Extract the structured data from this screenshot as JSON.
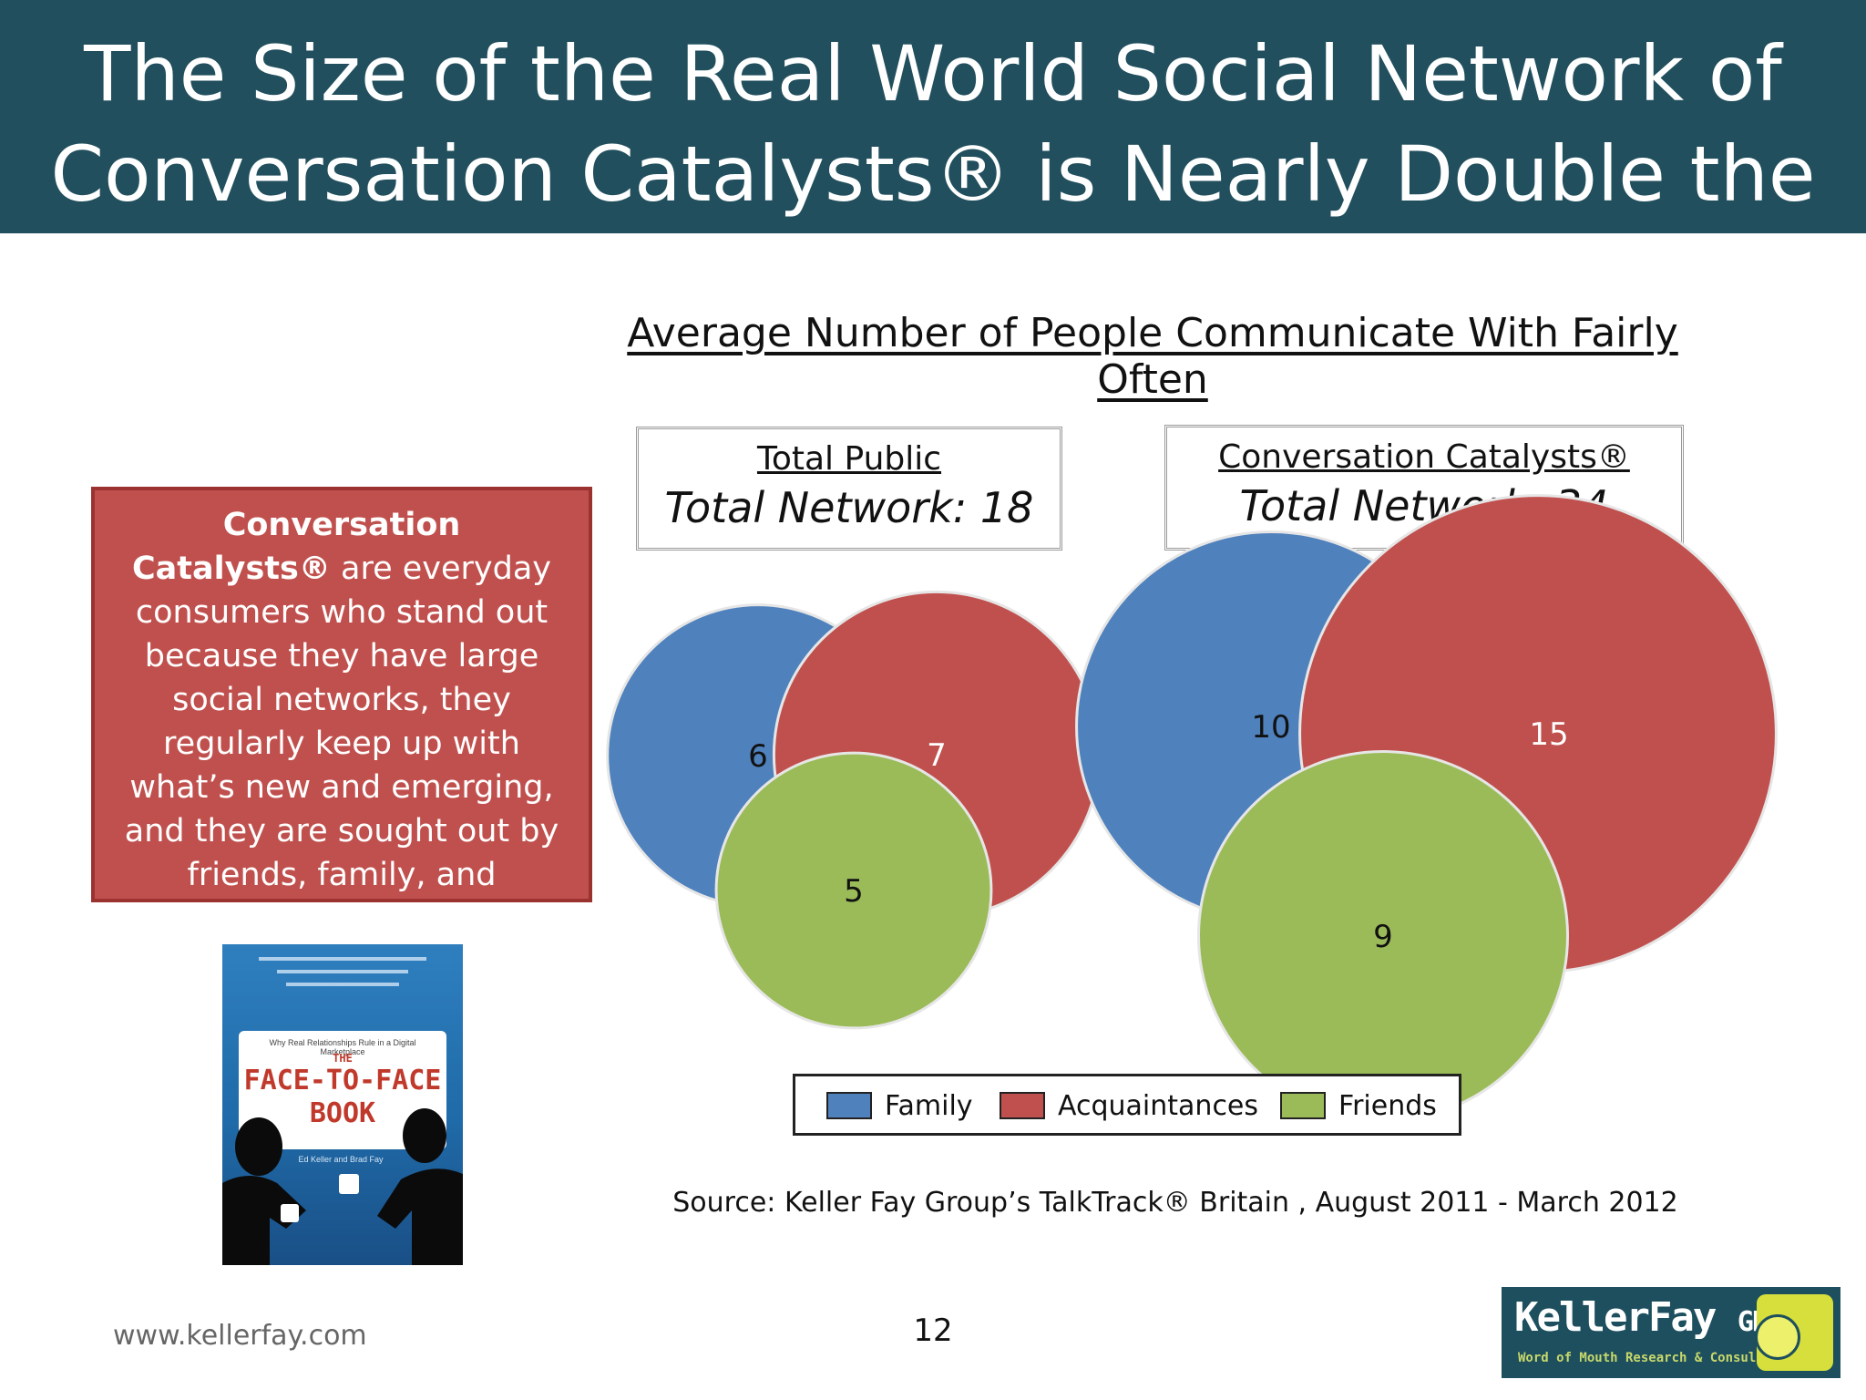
{
  "header": {
    "title_line1": "The Size of the Real World Social Network of",
    "title_line2": "Conversation Catalysts® is Nearly Double the Average"
  },
  "definition": {
    "bold": "Conversation Catalysts®",
    "text": " are everyday consumers who stand out because they have large social networks, they regularly keep up with what’s new and emerging, and they are sought out by friends, family, and neighbors for advice and recommendations"
  },
  "book": {
    "subtitle": "Why Real Relationships Rule in a Digital Marketplace",
    "the": "THE",
    "title_line1": "FACE-TO-FACE",
    "title_line2": "BOOK",
    "authors": "Ed Keller and Brad Fay"
  },
  "chart_data": {
    "type": "bubble",
    "title": "Average Number of People Communicate With Fairly Often",
    "categories": [
      "Family",
      "Acquaintances",
      "Friends"
    ],
    "colors": {
      "Family": "#4f81bd",
      "Acquaintances": "#c0504d",
      "Friends": "#9bbb59"
    },
    "groups": [
      {
        "name": "Total Public",
        "total_label": "Total Network: 18",
        "values": [
          6,
          7,
          5
        ]
      },
      {
        "name": "Conversation Catalysts®",
        "total_label": "Total Network: 34",
        "values": [
          10,
          15,
          9
        ]
      }
    ],
    "legend": [
      "Family",
      "Acquaintances",
      "Friends"
    ],
    "legend_position": "bottom"
  },
  "footer": {
    "source": "Source: Keller Fay Group’s TalkTrack® Britain , August 2011 - March 2012",
    "url": "www.kellerfay.com",
    "page_number": "12",
    "logo_name": "KellerFay",
    "logo_group": "GROUP",
    "logo_tagline": "Word of Mouth Research & Consulting"
  }
}
